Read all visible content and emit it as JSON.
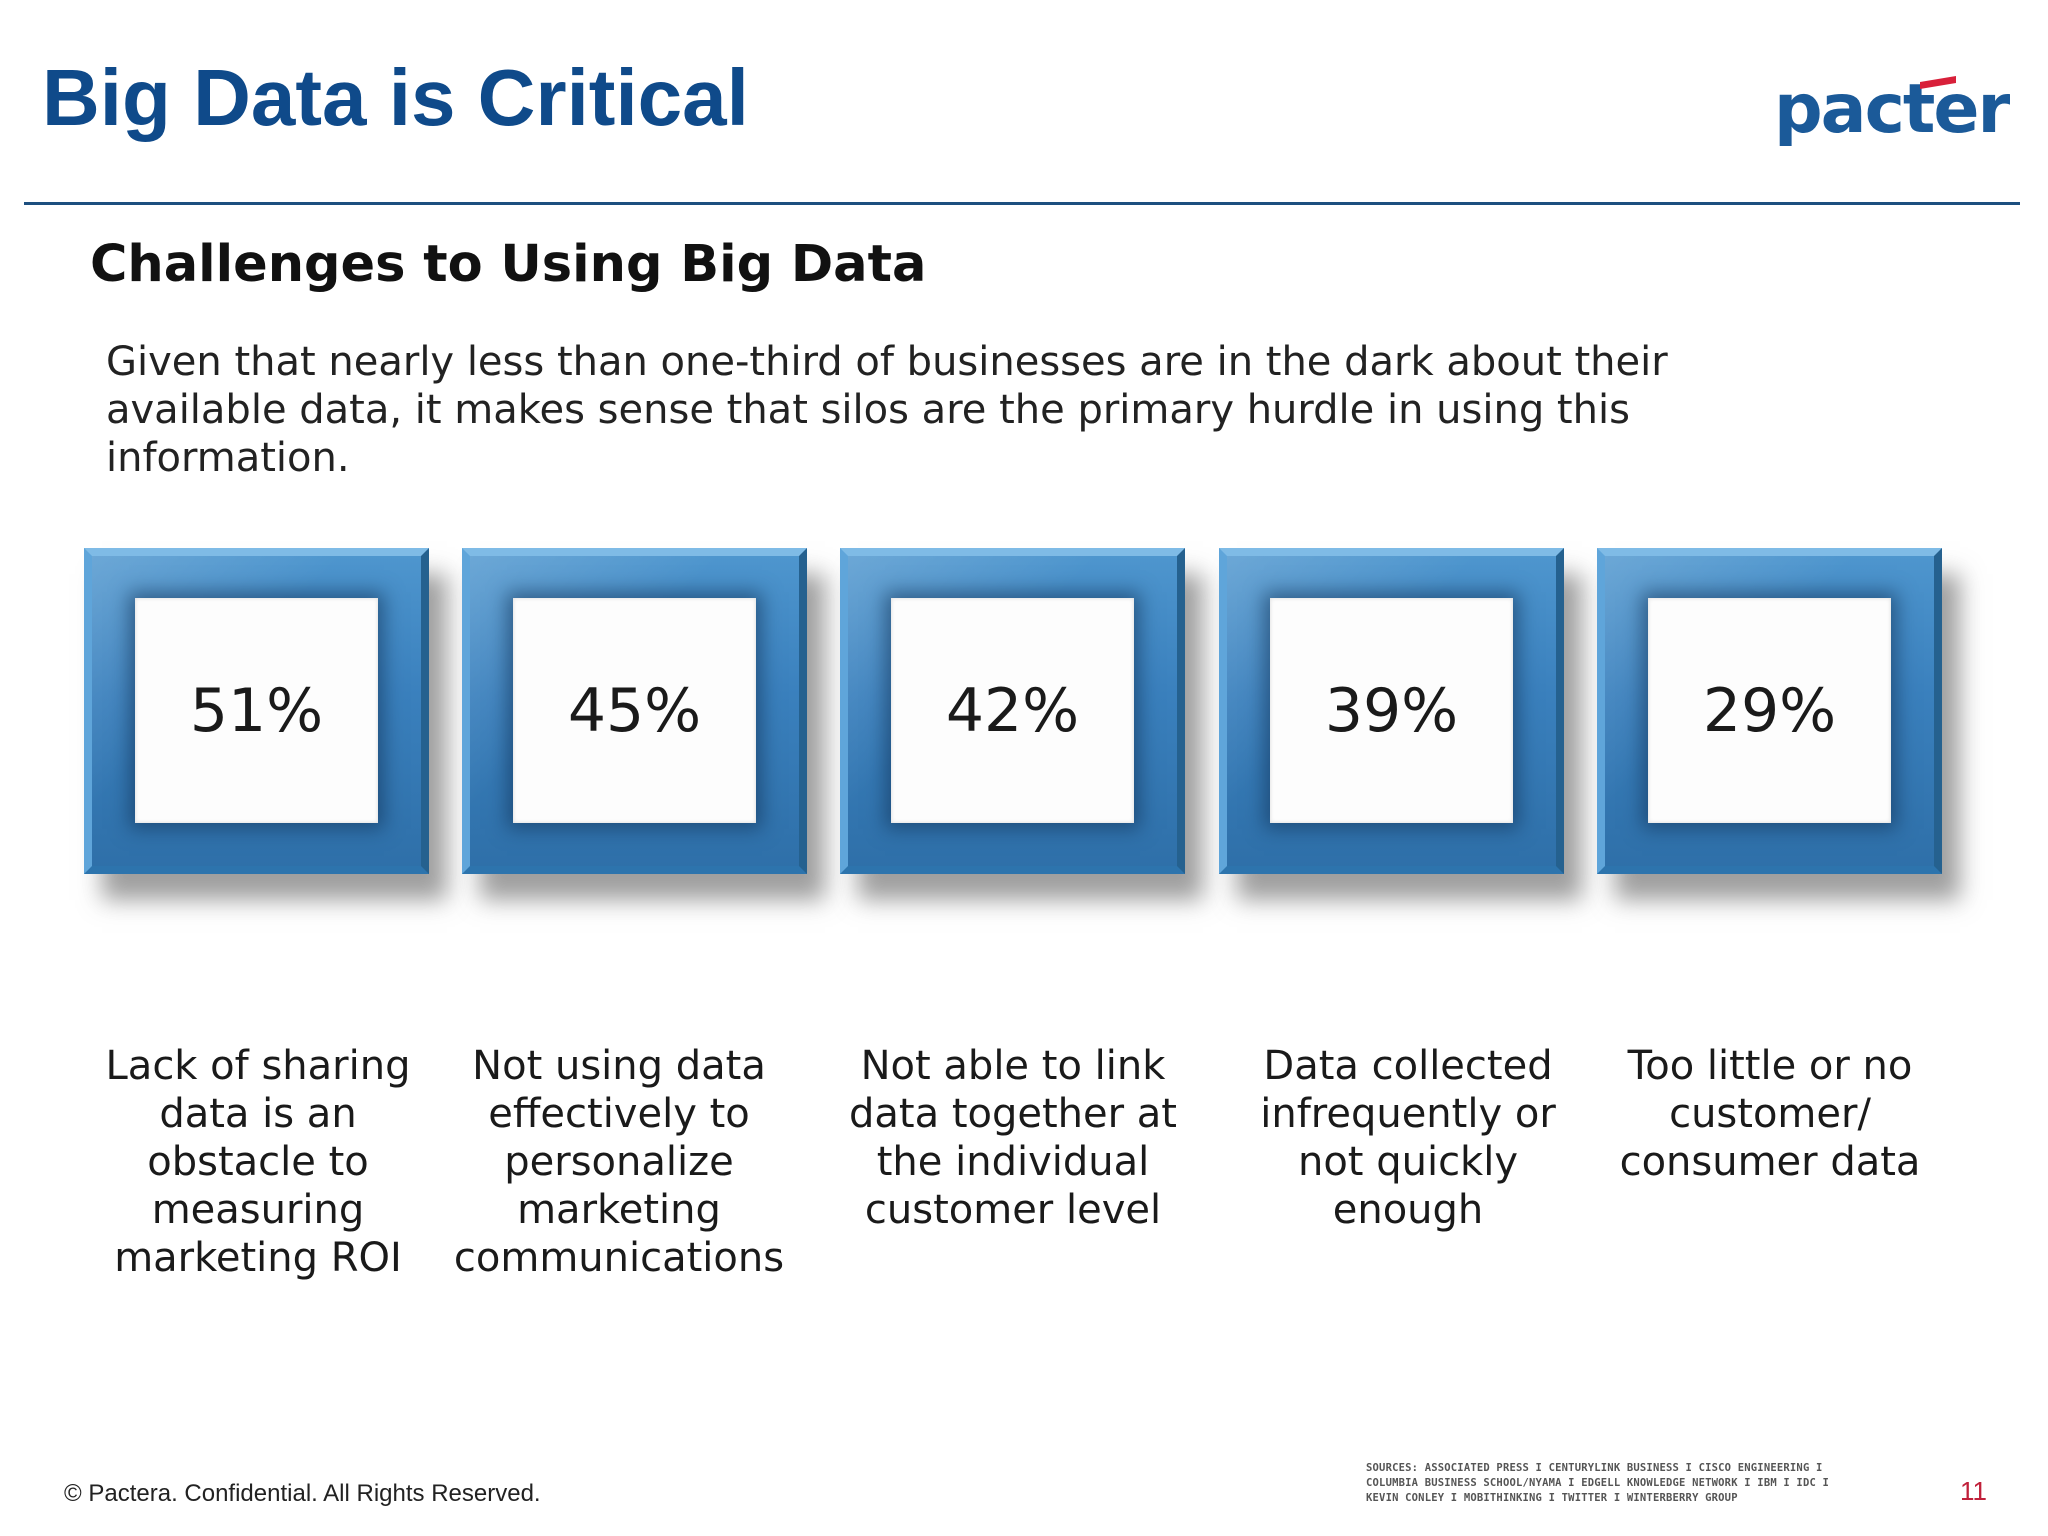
{
  "slide": {
    "title": "Big Data is Critical",
    "subtitle": "Challenges to Using Big Data",
    "intro": "Given that nearly less than one-third of businesses are in the dark about their available data, it makes sense that silos are the primary hurdle in using this information.",
    "logo_text": "pactera",
    "colors": {
      "title": "#0f4a8a",
      "tile": "#3a80bd",
      "logo": "#1b5a99",
      "logo_accent": "#d8203a",
      "page_number": "#c0203a"
    }
  },
  "challenges": [
    {
      "value": "51%",
      "label": "Lack of sharing data is an obstacle to measuring marketing ROI"
    },
    {
      "value": "45%",
      "label": "Not using data effectively to personalize marketing communications"
    },
    {
      "value": "42%",
      "label": "Not able to link data together at the individual customer level"
    },
    {
      "value": "39%",
      "label": "Data collected infrequently or not quickly enough"
    },
    {
      "value": "29%",
      "label": "Too little or no customer/ consumer data"
    }
  ],
  "footer": {
    "copyright": "© Pactera. Confidential. All Rights Reserved.",
    "sources_line1": "SOURCES: ASSOCIATED PRESS I CENTURYLINK BUSINESS I CISCO ENGINEERING I",
    "sources_line2": "COLUMBIA BUSINESS SCHOOL/NYAMA I EDGELL KNOWLEDGE NETWORK I IBM I IDC I",
    "sources_line3": "KEVIN CONLEY I MOBITHINKING I TWITTER I WINTERBERRY GROUP",
    "page_number": "11"
  }
}
